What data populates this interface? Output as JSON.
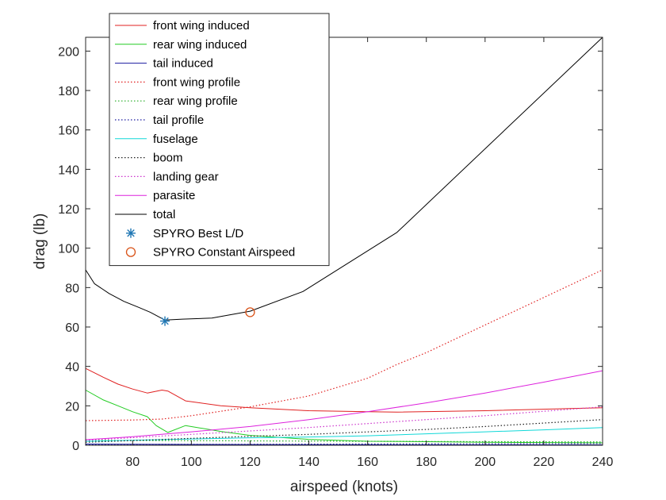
{
  "chart_data": {
    "type": "line",
    "xlabel": "airspeed (knots)",
    "ylabel": "drag (lb)",
    "xlim": [
      64,
      240
    ],
    "ylim": [
      0,
      207
    ],
    "x_ticks": [
      80,
      100,
      120,
      140,
      160,
      180,
      200,
      220,
      240
    ],
    "y_ticks": [
      0,
      20,
      40,
      60,
      80,
      100,
      120,
      140,
      160,
      180,
      200
    ],
    "grid": false,
    "legend_position": "top-left",
    "series": [
      {
        "name": "front wing induced",
        "color": "#e02020",
        "style": "solid",
        "x": [
          64,
          70,
          75,
          80,
          85,
          90,
          92,
          98,
          110,
          120,
          140,
          160,
          170,
          200,
          240
        ],
        "y": [
          39,
          34.5,
          31,
          28.5,
          26.5,
          28,
          27.5,
          22.5,
          20,
          19,
          17.5,
          17,
          16.8,
          17.5,
          19
        ]
      },
      {
        "name": "rear wing induced",
        "color": "#22cc22",
        "style": "solid",
        "x": [
          64,
          70,
          75,
          80,
          85,
          88,
          92,
          98,
          110,
          120,
          140,
          160,
          180,
          200,
          240
        ],
        "y": [
          28,
          23,
          20,
          17,
          14.5,
          10,
          6.5,
          10,
          7,
          5,
          3,
          2,
          1.8,
          1.5,
          1.2
        ]
      },
      {
        "name": "tail induced",
        "color": "#1a1aa0",
        "style": "solid",
        "x": [
          64,
          100,
          160,
          240
        ],
        "y": [
          0.6,
          0.4,
          0.3,
          0.2
        ]
      },
      {
        "name": "front wing profile",
        "color": "#e02020",
        "style": "dotted",
        "x": [
          64,
          80,
          90,
          100,
          120,
          140,
          160,
          170,
          180,
          200,
          220,
          240
        ],
        "y": [
          12.5,
          12.8,
          13.3,
          15,
          19.5,
          25,
          34,
          41,
          47,
          61,
          75,
          89
        ]
      },
      {
        "name": "rear wing profile",
        "color": "#22aa22",
        "style": "dotted",
        "x": [
          64,
          120,
          180,
          240
        ],
        "y": [
          2.5,
          2.2,
          1.9,
          1.7
        ]
      },
      {
        "name": "tail profile",
        "color": "#1a1aa0",
        "style": "dotted",
        "x": [
          64,
          120,
          180,
          240
        ],
        "y": [
          0.4,
          0.5,
          0.7,
          0.9
        ]
      },
      {
        "name": "fuselage",
        "color": "#10d8d8",
        "style": "solid",
        "x": [
          64,
          80,
          100,
          120,
          140,
          160,
          180,
          200,
          220,
          240
        ],
        "y": [
          2,
          2.5,
          3.2,
          3.8,
          4.2,
          4.8,
          5.8,
          6.8,
          7.8,
          9
        ]
      },
      {
        "name": "boom",
        "color": "#202020",
        "style": "dotted",
        "x": [
          64,
          100,
          140,
          180,
          200,
          240
        ],
        "y": [
          1.5,
          3.5,
          5.5,
          8,
          9.5,
          13
        ]
      },
      {
        "name": "landing gear",
        "color": "#cc33cc",
        "style": "dotted",
        "x": [
          64,
          100,
          140,
          180,
          200,
          240
        ],
        "y": [
          2.5,
          5.5,
          9,
          13,
          15,
          19.5
        ]
      },
      {
        "name": "parasite",
        "color": "#dd22dd",
        "style": "solid",
        "x": [
          64,
          80,
          100,
          120,
          140,
          160,
          180,
          200,
          220,
          240
        ],
        "y": [
          2.8,
          4.3,
          6.8,
          9.5,
          13,
          17,
          21.5,
          26.5,
          32,
          37.8
        ]
      },
      {
        "name": "total",
        "color": "#000000",
        "style": "solid",
        "x": [
          64,
          67,
          72,
          77,
          82,
          86,
          91,
          97,
          107,
          120,
          138,
          170,
          240
        ],
        "y": [
          89,
          82,
          77,
          73,
          70,
          67.5,
          63.5,
          64,
          64.5,
          68,
          78,
          108,
          207
        ]
      },
      {
        "name": "SPYRO Best L/D",
        "color": "#1f77b4",
        "style": "marker-star",
        "x": [
          91
        ],
        "y": [
          63
        ]
      },
      {
        "name": "SPYRO Constant Airspeed",
        "color": "#d95319",
        "style": "marker-circle",
        "x": [
          120
        ],
        "y": [
          67.5
        ]
      }
    ]
  }
}
